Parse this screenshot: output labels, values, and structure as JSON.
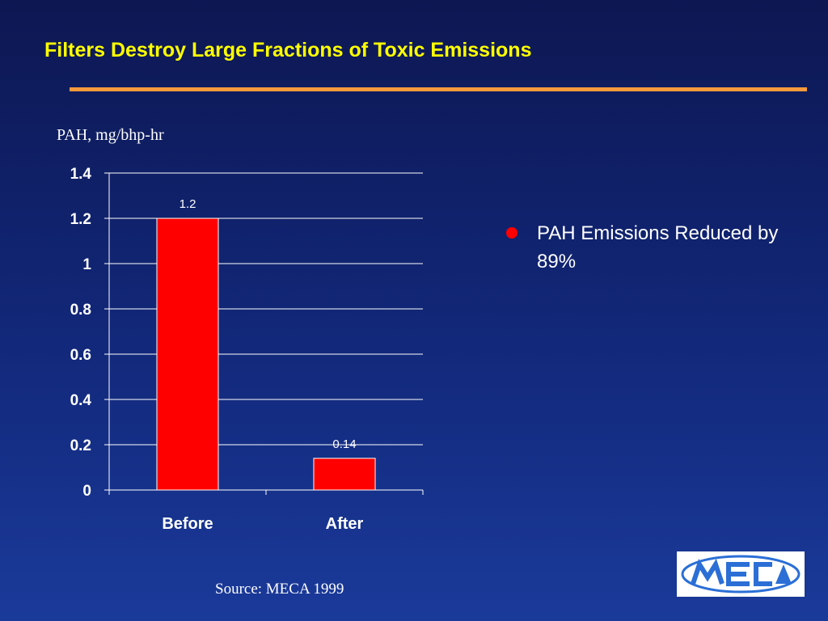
{
  "slide": {
    "title": "Filters Destroy Large Fractions of  Toxic Emissions",
    "source": "Source: MECA 1999"
  },
  "bullets": [
    {
      "text": "PAH Emissions Reduced by 89%"
    }
  ],
  "logo": {
    "text": "MECA"
  },
  "colors": {
    "title": "#ffff00",
    "rule": "#f59a3c",
    "bar": "#ff0000",
    "text": "#ffffff",
    "logo_blue": "#2b6fd6"
  },
  "chart_data": {
    "type": "bar",
    "title": "",
    "ylabel": "PAH, mg/bhp-hr",
    "xlabel": "",
    "categories": [
      "Before",
      "After"
    ],
    "values": [
      1.2,
      0.14
    ],
    "data_labels": [
      "1.2",
      "0.14"
    ],
    "ylim": [
      0,
      1.4
    ],
    "yticks": [
      "0",
      "0.2",
      "0.4",
      "0.6",
      "0.8",
      "1",
      "1.2",
      "1.4"
    ],
    "grid": true,
    "legend": "none"
  }
}
